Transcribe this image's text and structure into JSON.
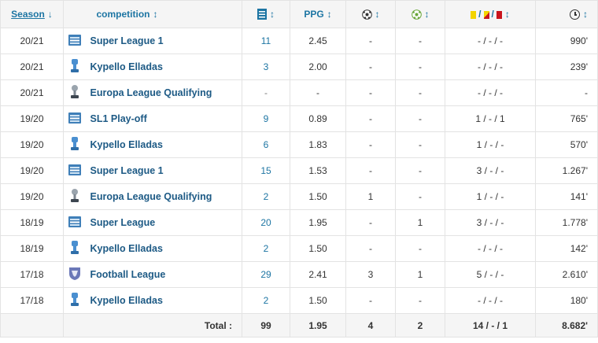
{
  "headers": {
    "season": "Season",
    "competition": "competition",
    "sort_glyph": "↕",
    "sort_down_glyph": "↓",
    "total_label": "Total :"
  },
  "colors": {
    "link": "#1d75a3",
    "header_bg": "#f5f5f5",
    "yellow_card": "#f3d400",
    "red_card": "#c9151e"
  },
  "rows": [
    {
      "season": "20/21",
      "comp_icon": "league-logo-icon",
      "competition": "Super League 1",
      "mp": "11",
      "ppg": "2.45",
      "goals": "-",
      "assists": "-",
      "cards": "- / - / -",
      "minutes": "990'"
    },
    {
      "season": "20/21",
      "comp_icon": "cup-trophy-icon",
      "competition": "Kypello Elladas",
      "mp": "3",
      "ppg": "2.00",
      "goals": "-",
      "assists": "-",
      "cards": "- / - / -",
      "minutes": "239'"
    },
    {
      "season": "20/21",
      "comp_icon": "europa-trophy-icon",
      "competition": "Europa League Qualifying",
      "mp": "-",
      "ppg": "-",
      "goals": "-",
      "assists": "-",
      "cards": "- / - / -",
      "minutes": "-"
    },
    {
      "season": "19/20",
      "comp_icon": "league-logo-icon",
      "competition": "SL1 Play-off",
      "mp": "9",
      "ppg": "0.89",
      "goals": "-",
      "assists": "-",
      "cards": "1 / - / 1",
      "minutes": "765'"
    },
    {
      "season": "19/20",
      "comp_icon": "cup-trophy-icon",
      "competition": "Kypello Elladas",
      "mp": "6",
      "ppg": "1.83",
      "goals": "-",
      "assists": "-",
      "cards": "1 / - / -",
      "minutes": "570'"
    },
    {
      "season": "19/20",
      "comp_icon": "league-logo-icon",
      "competition": "Super League 1",
      "mp": "15",
      "ppg": "1.53",
      "goals": "-",
      "assists": "-",
      "cards": "3 / - / -",
      "minutes": "1.267'"
    },
    {
      "season": "19/20",
      "comp_icon": "europa-trophy-icon",
      "competition": "Europa League Qualifying",
      "mp": "2",
      "ppg": "1.50",
      "goals": "1",
      "assists": "-",
      "cards": "1 / - / -",
      "minutes": "141'"
    },
    {
      "season": "18/19",
      "comp_icon": "league-logo-icon",
      "competition": "Super League",
      "mp": "20",
      "ppg": "1.95",
      "goals": "-",
      "assists": "1",
      "cards": "3 / - / -",
      "minutes": "1.778'"
    },
    {
      "season": "18/19",
      "comp_icon": "cup-trophy-icon",
      "competition": "Kypello Elladas",
      "mp": "2",
      "ppg": "1.50",
      "goals": "-",
      "assists": "-",
      "cards": "- / - / -",
      "minutes": "142'"
    },
    {
      "season": "17/18",
      "comp_icon": "shield-crest-icon",
      "competition": "Football League",
      "mp": "29",
      "ppg": "2.41",
      "goals": "3",
      "assists": "1",
      "cards": "5 / - / -",
      "minutes": "2.610'"
    },
    {
      "season": "17/18",
      "comp_icon": "cup-trophy-icon",
      "competition": "Kypello Elladas",
      "mp": "2",
      "ppg": "1.50",
      "goals": "-",
      "assists": "-",
      "cards": "- / - / -",
      "minutes": "180'"
    }
  ],
  "totals": {
    "mp": "99",
    "ppg": "1.95",
    "goals": "4",
    "assists": "2",
    "cards": "14 / - / 1",
    "minutes": "8.682'"
  }
}
